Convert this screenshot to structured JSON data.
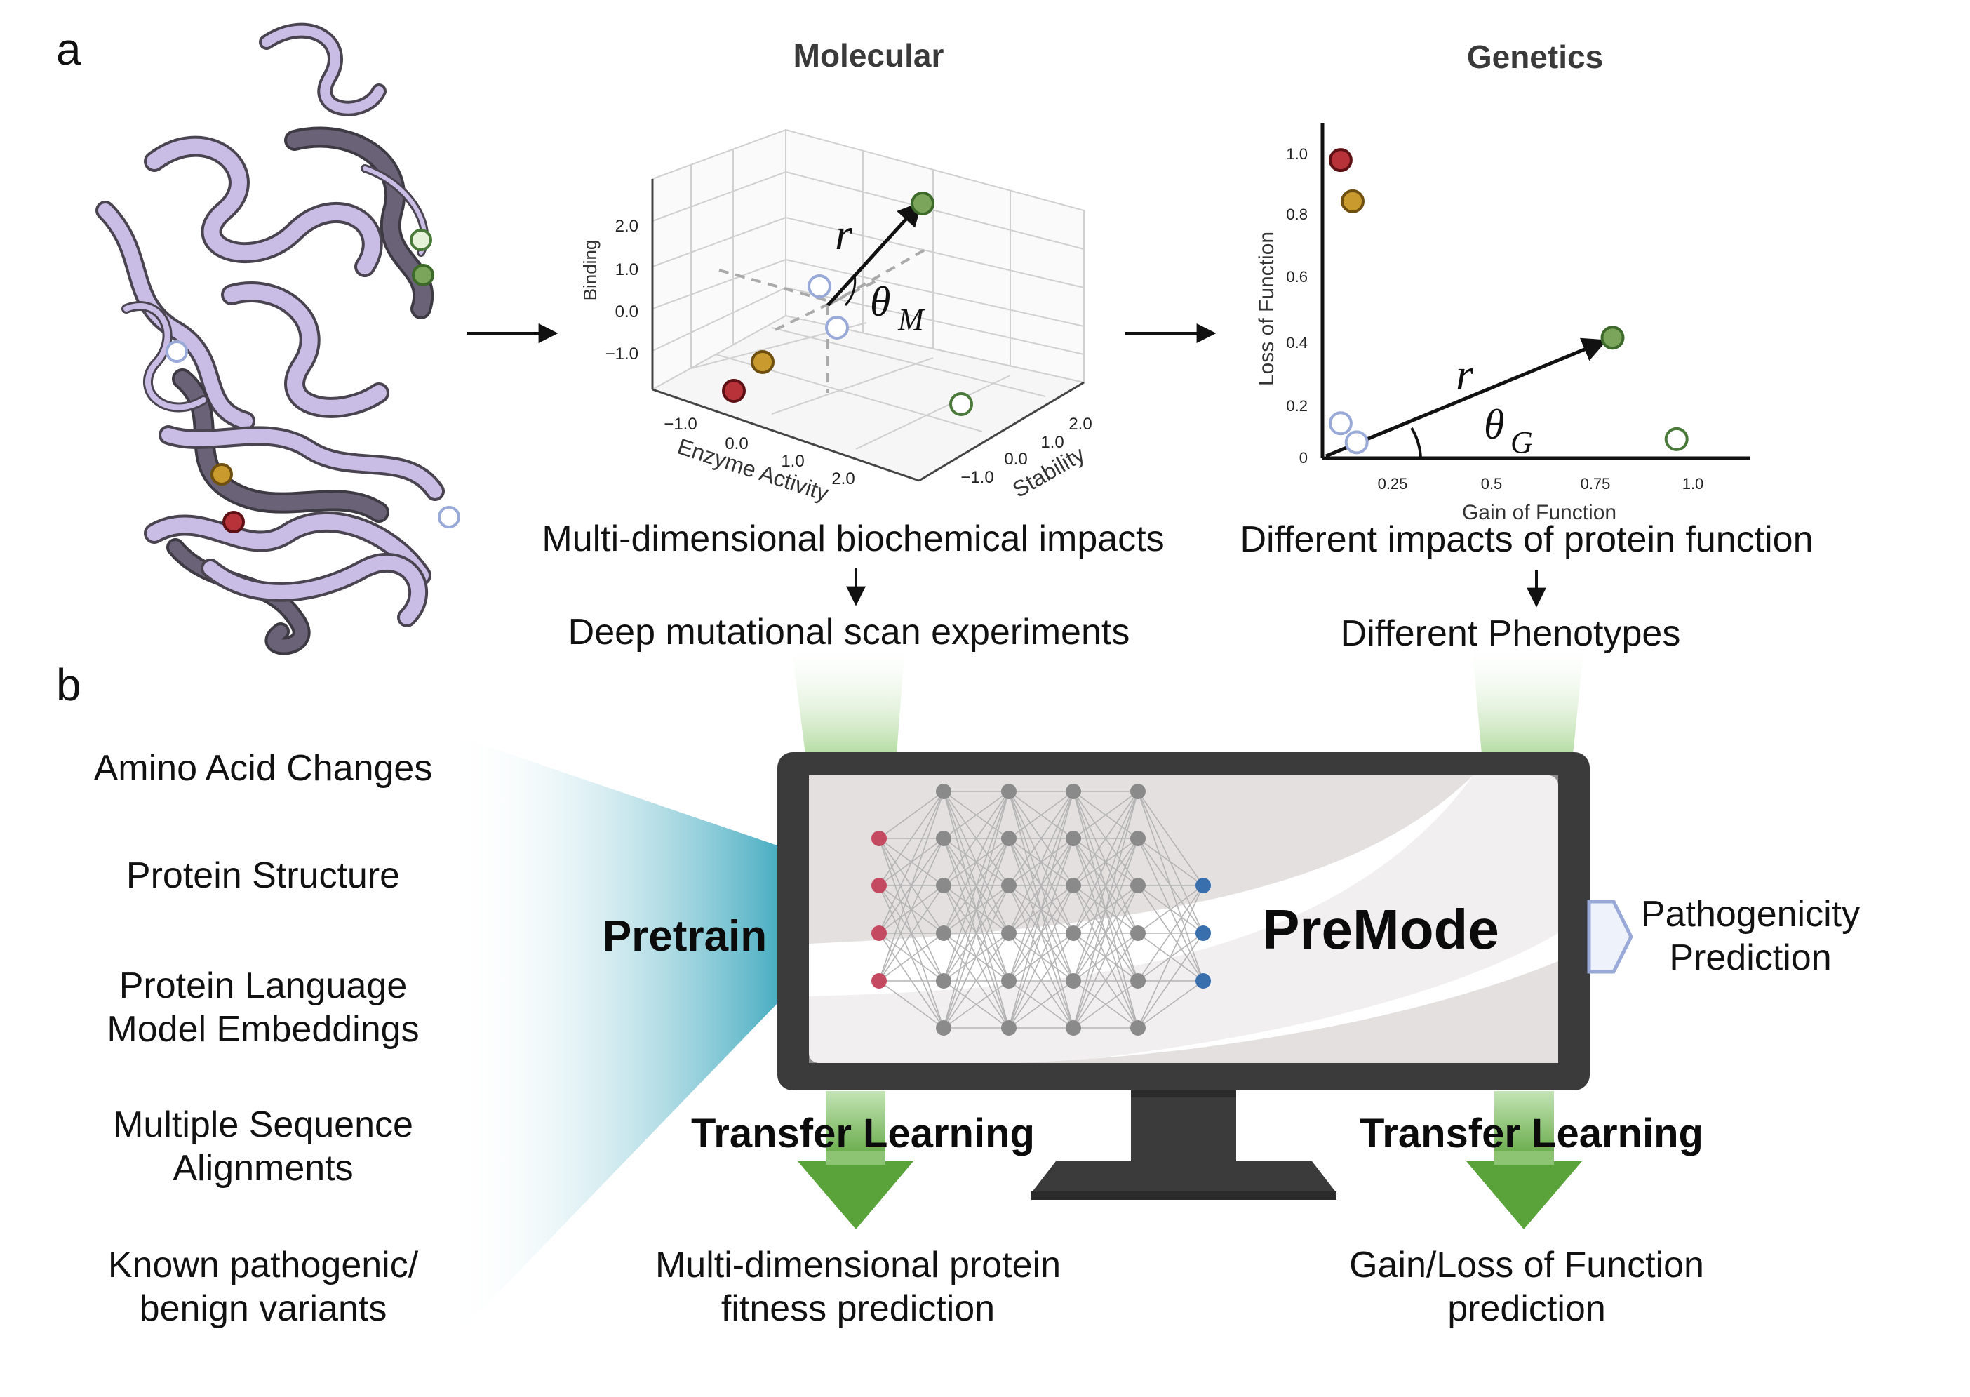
{
  "panels": {
    "a": "a",
    "b": "b"
  },
  "molecular": {
    "title": "Molecular",
    "axes": {
      "z": "Binding",
      "x": "Enzyme Activity",
      "y": "Stability"
    },
    "z_ticks": [
      "2.0",
      "1.0",
      "0.0",
      "−1.0"
    ],
    "x_ticks": [
      "−1.0",
      "0.0",
      "1.0",
      "2.0"
    ],
    "y_ticks": [
      "2.0",
      "1.0",
      "0.0",
      "−1.0"
    ],
    "vector_label": "r",
    "angle_label": "θ",
    "angle_sub": "M",
    "caption": "Multi-dimensional biochemical impacts",
    "next": "Deep mutational scan experiments"
  },
  "genetics": {
    "title": "Genetics",
    "xlabel": "Gain of Function",
    "ylabel": "Loss of Function",
    "x_ticks": [
      "0.25",
      "0.5",
      "0.75",
      "1.0"
    ],
    "y_ticks": [
      "1.0",
      "0.8",
      "0.6",
      "0.4",
      "0.2",
      "0"
    ],
    "vector_label": "r",
    "angle_label": "θ",
    "angle_sub": "G",
    "caption": "Different impacts of protein function",
    "next": "Different Phenotypes"
  },
  "chart_data": {
    "type": "scatter",
    "xlabel": "Gain of Function",
    "ylabel": "Loss of Function",
    "xlim": [
      0.1,
      1.05
    ],
    "ylim": [
      0,
      1.05
    ],
    "points": [
      {
        "x": 0.12,
        "y": 0.94,
        "color": "#b8323a"
      },
      {
        "x": 0.15,
        "y": 0.81,
        "color": "#c99a2e"
      },
      {
        "x": 0.8,
        "y": 0.38,
        "color": "#7aa55a"
      },
      {
        "x": 0.96,
        "y": 0.06,
        "color": "#ffffff",
        "stroke": "#4a7a3a"
      },
      {
        "x": 0.12,
        "y": 0.11,
        "color": "#ffffff",
        "stroke": "#9aaad8"
      },
      {
        "x": 0.16,
        "y": 0.05,
        "color": "#ffffff",
        "stroke": "#9aaad8"
      }
    ],
    "vector": {
      "x": 0.8,
      "y": 0.38
    }
  },
  "inputs": [
    [
      "Amino Acid Changes"
    ],
    [
      "Protein Structure"
    ],
    [
      "Protein Language",
      "Model Embeddings"
    ],
    [
      "Multiple Sequence",
      "Alignments"
    ],
    [
      "Known pathogenic/",
      "benign variants"
    ]
  ],
  "pretrain": "Pretrain",
  "model_name": "PreMode",
  "output_right": [
    "Pathogenicity",
    "Prediction"
  ],
  "transfer_left": "Transfer Learning",
  "transfer_right": "Transfer Learning",
  "result_left": [
    "Multi-dimensional protein",
    "fitness prediction"
  ],
  "result_right": [
    "Gain/Loss of Function",
    "prediction"
  ],
  "colors": {
    "teal": "#5fb9c9",
    "green": "#6aaa48",
    "green_light": "#c9e6bc",
    "monitor": "#3b3b3b",
    "protein_light": "#c9bde6",
    "protein_dark": "#6a6378",
    "node_gray": "#8a8a8a",
    "node_red": "#c44a62",
    "node_blue": "#3a6fae"
  }
}
